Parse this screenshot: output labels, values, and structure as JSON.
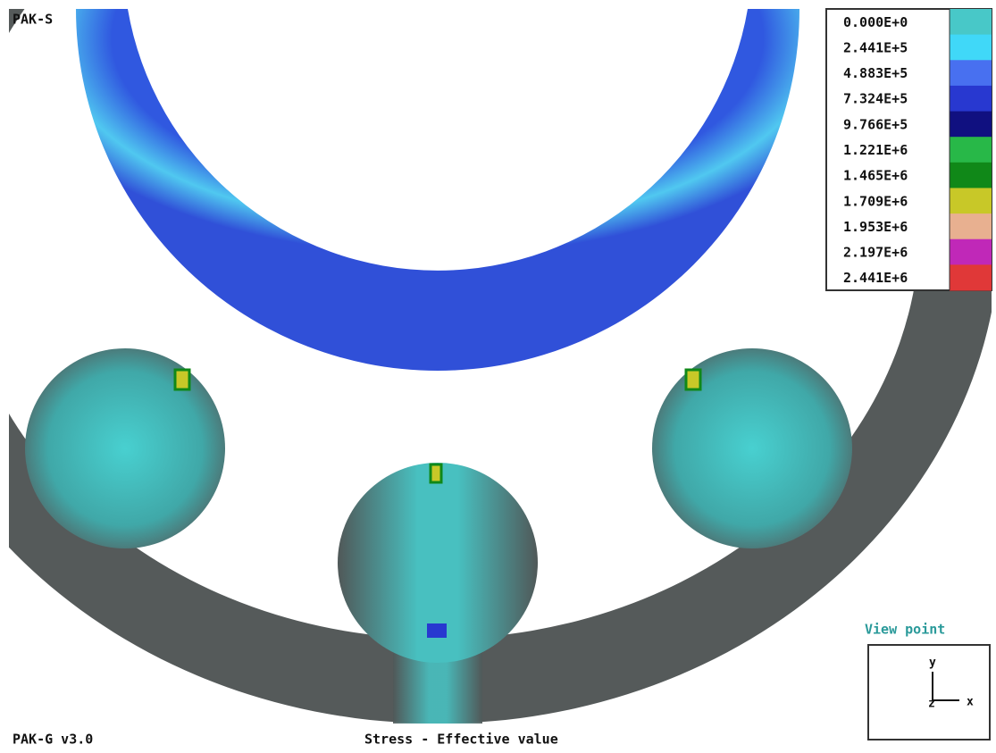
{
  "header": {
    "title": "PAK-S"
  },
  "legend": {
    "entries": [
      {
        "label": "0.000E+0",
        "color": "#48c8c8"
      },
      {
        "label": "2.441E+5",
        "color": "#40d8f8"
      },
      {
        "label": "4.883E+5",
        "color": "#4870f0"
      },
      {
        "label": "7.324E+5",
        "color": "#2838d0"
      },
      {
        "label": "9.766E+5",
        "color": "#101080"
      },
      {
        "label": "1.221E+6",
        "color": "#28b848"
      },
      {
        "label": "1.465E+6",
        "color": "#108818"
      },
      {
        "label": "1.709E+6",
        "color": "#c8c828"
      },
      {
        "label": "1.953E+6",
        "color": "#e8b090"
      },
      {
        "label": "2.197E+6",
        "color": "#c028b8"
      },
      {
        "label": "2.441E+6",
        "color": "#e03838"
      }
    ]
  },
  "viewpoint": {
    "title": "View point",
    "axes": {
      "y": "y",
      "z": "z",
      "x": "x"
    }
  },
  "footer": {
    "program": "PAK-G v3.0",
    "caption": "Stress - Effective value"
  }
}
